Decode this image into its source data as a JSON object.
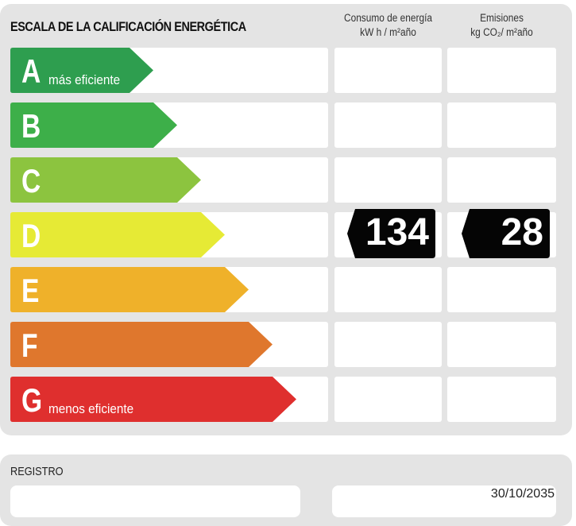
{
  "header": {
    "title": "ESCALA DE LA CALIFICACIÓN ENERGÉTICA",
    "col1_line1": "Consumo de energía",
    "col1_line2": "kW h / m²año",
    "col2_line1": "Emisiones",
    "col2_line2": "kg CO₂/ m²año"
  },
  "ratings": [
    {
      "letter": "A",
      "label": "más eficiente",
      "color": "#2e9e4f"
    },
    {
      "letter": "B",
      "label": "",
      "color": "#3daf49"
    },
    {
      "letter": "C",
      "label": "",
      "color": "#8cc43f"
    },
    {
      "letter": "D",
      "label": "",
      "color": "#e6ea35"
    },
    {
      "letter": "E",
      "label": "",
      "color": "#efb12a"
    },
    {
      "letter": "F",
      "label": "",
      "color": "#df772d"
    },
    {
      "letter": "G",
      "label": "menos eficiente",
      "color": "#df2f2e"
    }
  ],
  "current_rating": "D",
  "consumption": "134",
  "emissions": "28",
  "registro": {
    "label": "REGISTRO",
    "date": "30/10/2035"
  }
}
